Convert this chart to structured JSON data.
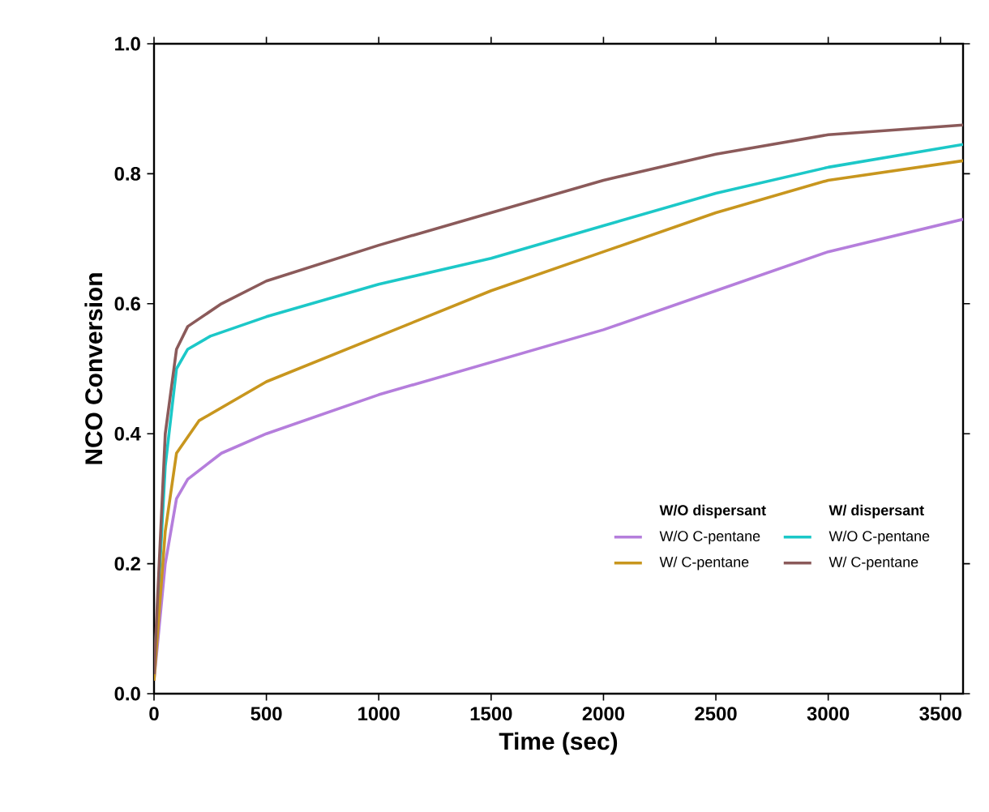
{
  "chart_data": {
    "type": "line",
    "xlabel": "Time (sec)",
    "ylabel": "NCO Conversion",
    "annotations": [
      "W/O dispersant",
      "W/ dispersant"
    ],
    "xlim": [
      0,
      3600
    ],
    "xticks": [
      0,
      500,
      1000,
      1500,
      2000,
      2500,
      3000,
      3500
    ],
    "ylim": [
      0,
      1
    ],
    "yticks": [
      {
        "value": 0,
        "label": "0.0"
      },
      {
        "value": 0.2,
        "label": "0.2"
      },
      {
        "value": 0.4,
        "label": "0.4"
      },
      {
        "value": 0.6,
        "label": "0.6"
      },
      {
        "value": 0.8,
        "label": "0.8"
      },
      {
        "value": 1,
        "label": "1.0"
      }
    ],
    "legend": "bottom right",
    "grid": false,
    "line_style": "solid",
    "marker": "none",
    "series": [
      {
        "name": "W/O C-pentane",
        "color": "#b57edc",
        "x": [
          0,
          50,
          100,
          150,
          300,
          500,
          1000,
          1500,
          2000,
          2500,
          3000,
          3600
        ],
        "values": [
          0.02,
          0.2,
          0.3,
          0.33,
          0.37,
          0.4,
          0.46,
          0.51,
          0.56,
          0.62,
          0.68,
          0.73
        ]
      },
      {
        "name": "W/O C-pentane",
        "color": "#1cc8c8",
        "x": [
          0,
          50,
          100,
          150,
          250,
          500,
          1000,
          1500,
          2000,
          2500,
          3000,
          3600
        ],
        "values": [
          0.03,
          0.35,
          0.5,
          0.53,
          0.55,
          0.58,
          0.63,
          0.67,
          0.72,
          0.77,
          0.81,
          0.845
        ]
      },
      {
        "name": "W/ C-pentane",
        "color": "#c8961e",
        "x": [
          0,
          50,
          100,
          200,
          500,
          1000,
          1500,
          2000,
          2500,
          3000,
          3600
        ],
        "values": [
          0.02,
          0.25,
          0.37,
          0.42,
          0.48,
          0.55,
          0.62,
          0.68,
          0.74,
          0.79,
          0.82
        ]
      },
      {
        "name": "W/ C-pentane",
        "color": "#8b5a5a",
        "x": [
          0,
          50,
          100,
          150,
          300,
          500,
          1000,
          1500,
          2000,
          2500,
          3000,
          3600
        ],
        "values": [
          0.03,
          0.4,
          0.53,
          0.565,
          0.6,
          0.635,
          0.69,
          0.74,
          0.79,
          0.83,
          0.86,
          0.875
        ]
      }
    ]
  }
}
